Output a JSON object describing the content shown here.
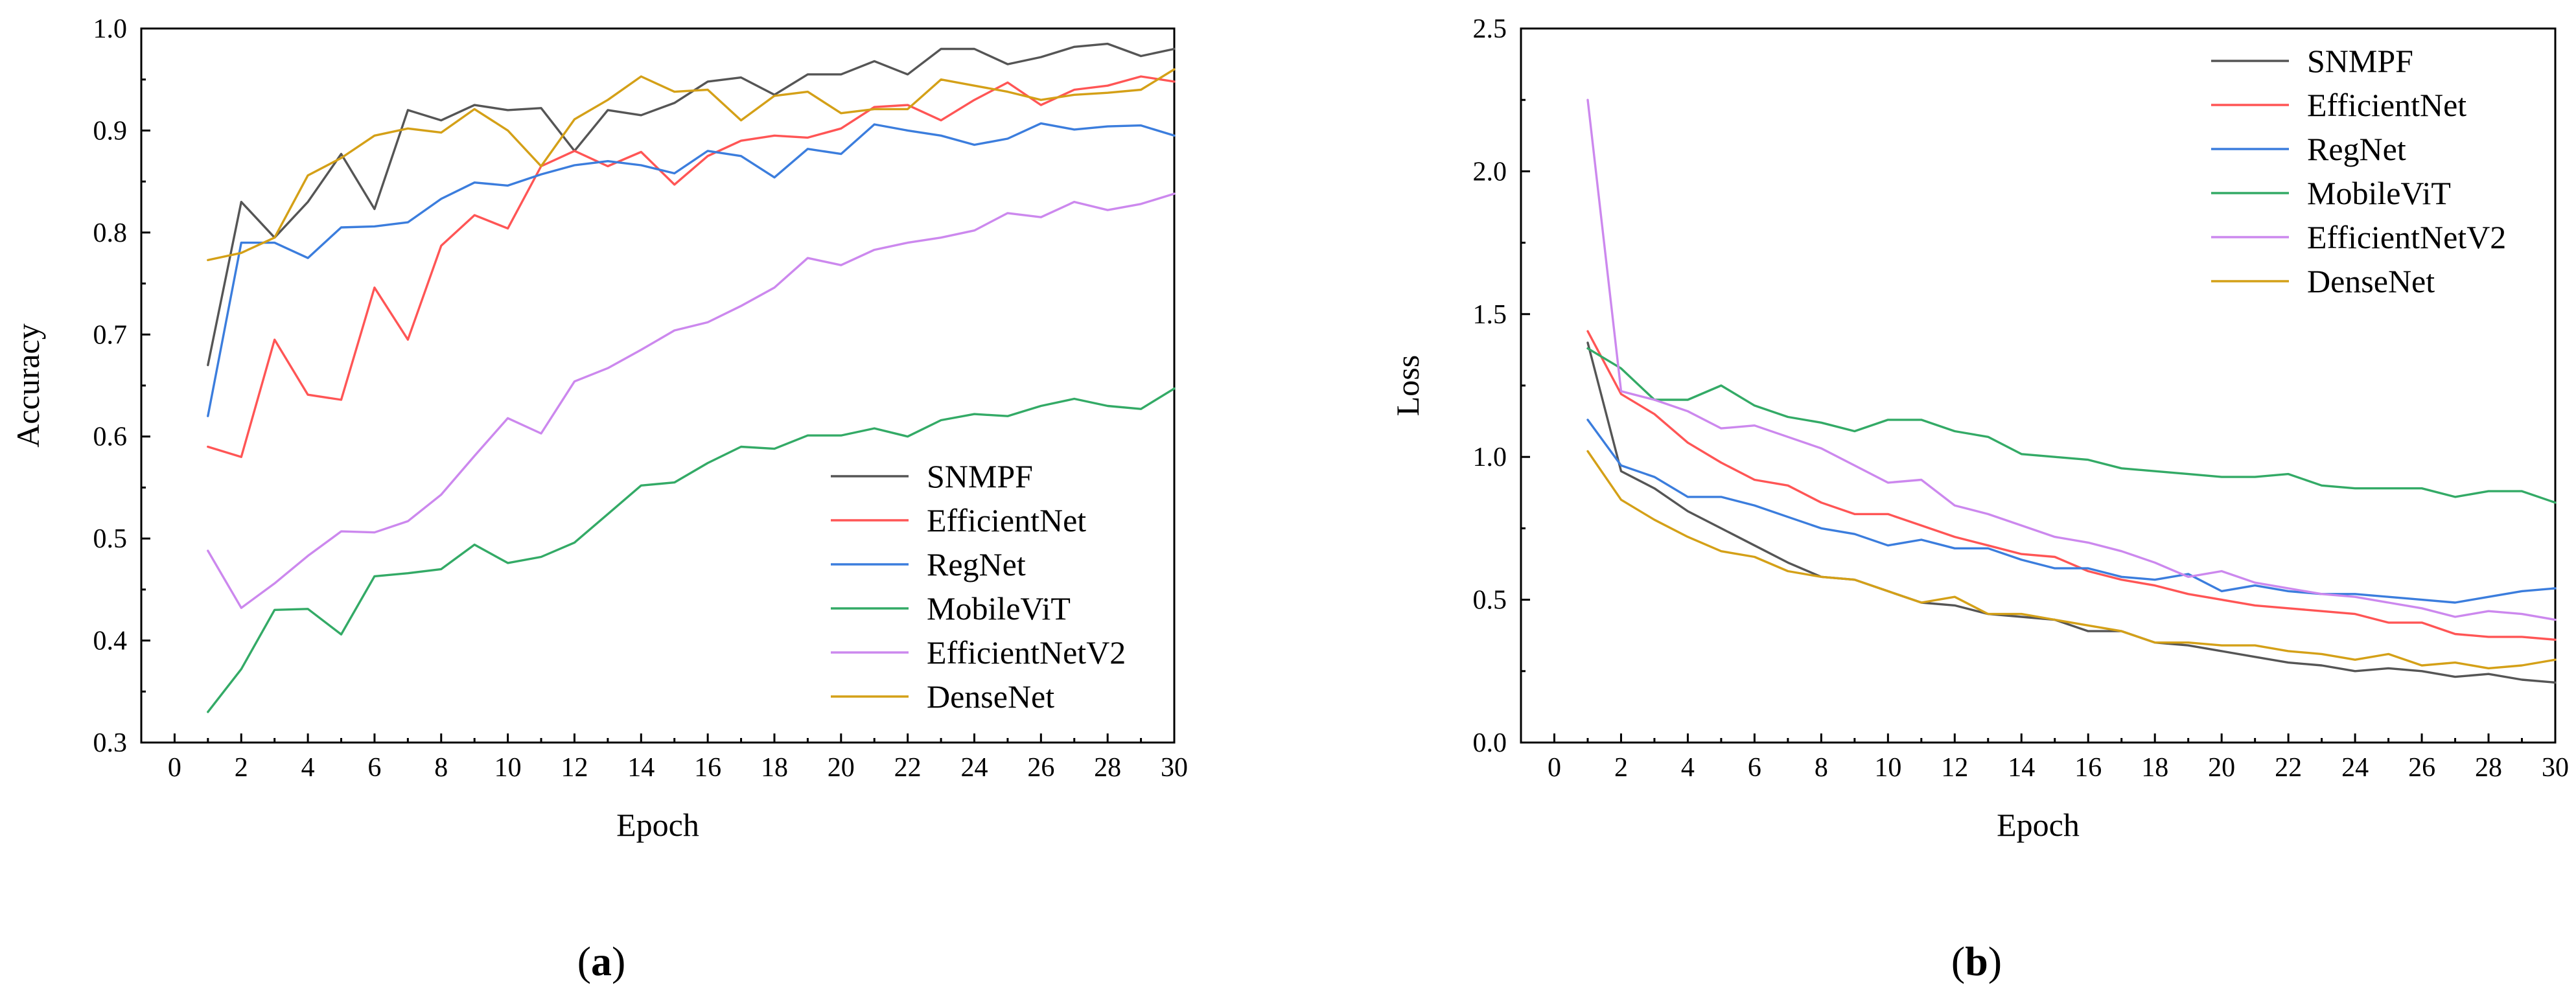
{
  "chart_data": [
    {
      "type": "line",
      "panel_label": "(a)",
      "panel_letter": "a",
      "title": "",
      "xlabel": "Epoch",
      "ylabel": "Accuracy",
      "xlim": [
        -1,
        30
      ],
      "ylim": [
        0.3,
        1.0
      ],
      "xticks": [
        0,
        2,
        4,
        6,
        8,
        10,
        12,
        14,
        16,
        18,
        20,
        22,
        24,
        26,
        28,
        30
      ],
      "yticks": [
        0.3,
        0.4,
        0.5,
        0.6,
        0.7,
        0.8,
        0.9,
        1.0
      ],
      "ytick_labels": [
        "0.3",
        "0.4",
        "0.5",
        "0.6",
        "0.7",
        "0.8",
        "0.9",
        "1.0"
      ],
      "legend_position": "bottom-right",
      "x": [
        1,
        2,
        3,
        4,
        5,
        6,
        7,
        8,
        9,
        10,
        11,
        12,
        13,
        14,
        15,
        16,
        17,
        18,
        19,
        20,
        21,
        22,
        23,
        24,
        25,
        26,
        27,
        28,
        29,
        30
      ],
      "series": [
        {
          "name": "SNMPF",
          "color": "#555555",
          "values": [
            0.67,
            0.83,
            0.795,
            0.83,
            0.877,
            0.823,
            0.92,
            0.91,
            0.925,
            0.92,
            0.922,
            0.88,
            0.92,
            0.915,
            0.927,
            0.948,
            0.952,
            0.935,
            0.955,
            0.955,
            0.968,
            0.955,
            0.98,
            0.98,
            0.965,
            0.972,
            0.982,
            0.985,
            0.973,
            0.98
          ]
        },
        {
          "name": "EfficientNet",
          "color": "#ff5555",
          "values": [
            0.59,
            0.58,
            0.695,
            0.641,
            0.636,
            0.746,
            0.695,
            0.787,
            0.817,
            0.804,
            0.865,
            0.88,
            0.865,
            0.879,
            0.847,
            0.875,
            0.89,
            0.895,
            0.893,
            0.902,
            0.923,
            0.925,
            0.91,
            0.93,
            0.947,
            0.925,
            0.94,
            0.944,
            0.953,
            0.948
          ]
        },
        {
          "name": "RegNet",
          "color": "#3b7ddd",
          "values": [
            0.62,
            0.79,
            0.79,
            0.775,
            0.805,
            0.806,
            0.81,
            0.833,
            0.849,
            0.846,
            0.857,
            0.866,
            0.87,
            0.866,
            0.858,
            0.88,
            0.875,
            0.854,
            0.882,
            0.877,
            0.906,
            0.9,
            0.895,
            0.886,
            0.892,
            0.907,
            0.901,
            0.904,
            0.905,
            0.895
          ]
        },
        {
          "name": "MobileViT",
          "color": "#33aa66",
          "values": [
            0.33,
            0.372,
            0.43,
            0.431,
            0.406,
            0.463,
            0.466,
            0.47,
            0.494,
            0.476,
            0.482,
            0.496,
            0.524,
            0.552,
            0.555,
            0.574,
            0.59,
            0.588,
            0.601,
            0.601,
            0.608,
            0.6,
            0.616,
            0.622,
            0.62,
            0.63,
            0.637,
            0.63,
            0.627,
            0.647
          ]
        },
        {
          "name": "EfficientNetV2",
          "color": "#cc88ee",
          "values": [
            0.488,
            0.432,
            0.456,
            0.483,
            0.507,
            0.506,
            0.517,
            0.543,
            0.581,
            0.618,
            0.603,
            0.654,
            0.667,
            0.685,
            0.704,
            0.712,
            0.728,
            0.746,
            0.775,
            0.768,
            0.783,
            0.79,
            0.795,
            0.802,
            0.819,
            0.815,
            0.83,
            0.822,
            0.828,
            0.838
          ]
        },
        {
          "name": "DenseNet",
          "color": "#d4a017",
          "values": [
            0.773,
            0.78,
            0.795,
            0.856,
            0.873,
            0.895,
            0.902,
            0.898,
            0.921,
            0.9,
            0.865,
            0.911,
            0.93,
            0.953,
            0.938,
            0.94,
            0.91,
            0.934,
            0.938,
            0.917,
            0.921,
            0.921,
            0.95,
            0.944,
            0.938,
            0.93,
            0.935,
            0.937,
            0.94,
            0.96
          ]
        }
      ]
    },
    {
      "type": "line",
      "panel_label": "(b)",
      "panel_letter": "b",
      "title": "",
      "xlabel": "Epoch",
      "ylabel": "Loss",
      "xlim": [
        -1,
        30
      ],
      "ylim": [
        0.0,
        2.5
      ],
      "xticks": [
        0,
        2,
        4,
        6,
        8,
        10,
        12,
        14,
        16,
        18,
        20,
        22,
        24,
        26,
        28,
        30
      ],
      "yticks": [
        0.0,
        0.5,
        1.0,
        1.5,
        2.0,
        2.5
      ],
      "ytick_labels": [
        "0.0",
        "0.5",
        "1.0",
        "1.5",
        "2.0",
        "2.5"
      ],
      "legend_position": "top-right",
      "x": [
        1,
        2,
        3,
        4,
        5,
        6,
        7,
        8,
        9,
        10,
        11,
        12,
        13,
        14,
        15,
        16,
        17,
        18,
        19,
        20,
        21,
        22,
        23,
        24,
        25,
        26,
        27,
        28,
        29,
        30
      ],
      "series": [
        {
          "name": "SNMPF",
          "color": "#555555",
          "values": [
            1.4,
            0.95,
            0.89,
            0.81,
            0.75,
            0.69,
            0.63,
            0.58,
            0.57,
            0.53,
            0.49,
            0.48,
            0.45,
            0.44,
            0.43,
            0.39,
            0.39,
            0.35,
            0.34,
            0.32,
            0.3,
            0.28,
            0.27,
            0.25,
            0.26,
            0.25,
            0.23,
            0.24,
            0.22,
            0.21
          ]
        },
        {
          "name": "EfficientNet",
          "color": "#ff5555",
          "values": [
            1.44,
            1.22,
            1.15,
            1.05,
            0.98,
            0.92,
            0.9,
            0.84,
            0.8,
            0.8,
            0.76,
            0.72,
            0.69,
            0.66,
            0.65,
            0.6,
            0.57,
            0.55,
            0.52,
            0.5,
            0.48,
            0.47,
            0.46,
            0.45,
            0.42,
            0.42,
            0.38,
            0.37,
            0.37,
            0.36
          ]
        },
        {
          "name": "RegNet",
          "color": "#3b7ddd",
          "values": [
            1.13,
            0.97,
            0.93,
            0.86,
            0.86,
            0.83,
            0.79,
            0.75,
            0.73,
            0.69,
            0.71,
            0.68,
            0.68,
            0.64,
            0.61,
            0.61,
            0.58,
            0.57,
            0.59,
            0.53,
            0.55,
            0.53,
            0.52,
            0.52,
            0.51,
            0.5,
            0.49,
            0.51,
            0.53,
            0.54
          ]
        },
        {
          "name": "MobileViT",
          "color": "#33aa66",
          "values": [
            1.38,
            1.31,
            1.2,
            1.2,
            1.25,
            1.18,
            1.14,
            1.12,
            1.09,
            1.13,
            1.13,
            1.09,
            1.07,
            1.01,
            1.0,
            0.99,
            0.96,
            0.95,
            0.94,
            0.93,
            0.93,
            0.94,
            0.9,
            0.89,
            0.89,
            0.89,
            0.86,
            0.88,
            0.88,
            0.84
          ]
        },
        {
          "name": "EfficientNetV2",
          "color": "#cc88ee",
          "values": [
            2.25,
            1.23,
            1.2,
            1.16,
            1.1,
            1.11,
            1.07,
            1.03,
            0.97,
            0.91,
            0.92,
            0.83,
            0.8,
            0.76,
            0.72,
            0.7,
            0.67,
            0.63,
            0.58,
            0.6,
            0.56,
            0.54,
            0.52,
            0.51,
            0.49,
            0.47,
            0.44,
            0.46,
            0.45,
            0.43
          ]
        },
        {
          "name": "DenseNet",
          "color": "#d4a017",
          "values": [
            1.02,
            0.85,
            0.78,
            0.72,
            0.67,
            0.65,
            0.6,
            0.58,
            0.57,
            0.53,
            0.49,
            0.51,
            0.45,
            0.45,
            0.43,
            0.41,
            0.39,
            0.35,
            0.35,
            0.34,
            0.34,
            0.32,
            0.31,
            0.29,
            0.31,
            0.27,
            0.28,
            0.26,
            0.27,
            0.29
          ]
        }
      ]
    }
  ]
}
